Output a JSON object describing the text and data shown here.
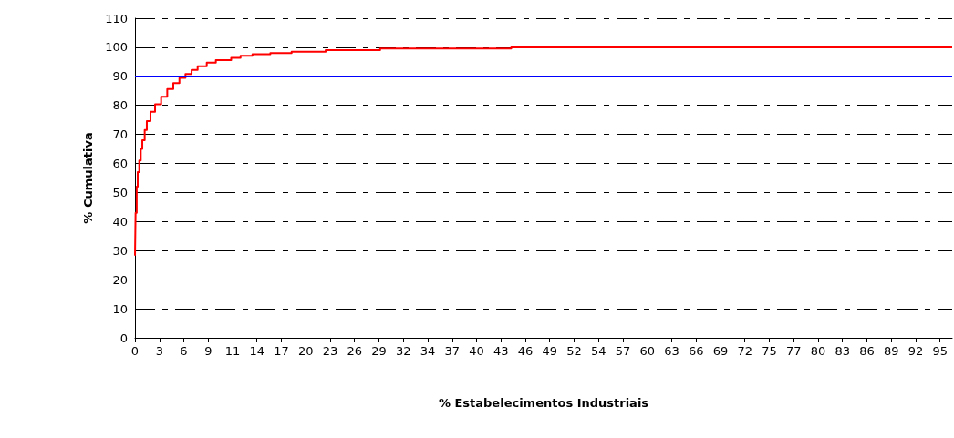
{
  "chart_data": {
    "type": "step",
    "xlabel": "% Estabelecimentos Industriais",
    "ylabel": "% Cumulativa",
    "x": [
      0,
      0.07,
      0.2,
      0.32,
      0.5,
      0.68,
      0.86,
      1.14,
      1.39,
      1.82,
      2.36,
      3.07,
      3.79,
      4.5,
      5.22,
      5.93,
      6.65,
      7.36,
      8.43,
      9.5,
      11.3,
      12.4,
      13.8,
      15.9,
      18.4,
      22.4,
      28.8,
      44.2,
      96
    ],
    "series": [
      {
        "color": "#ff0000",
        "values": [
          28.3,
          43,
          52,
          57,
          61,
          65,
          68,
          71.5,
          74.6,
          77.8,
          80.4,
          83,
          85.6,
          87.7,
          89.5,
          90.8,
          92.2,
          93.5,
          94.7,
          95.6,
          96.4,
          97.1,
          97.6,
          98,
          98.5,
          99,
          99.6,
          100,
          100
        ]
      }
    ],
    "xlim": [
      0,
      96
    ],
    "xticks": [
      0,
      {
        "value": 2.87,
        "label": "3"
      },
      {
        "value": 5.73,
        "label": "6"
      },
      {
        "value": 8.6,
        "label": "9"
      },
      {
        "value": 11.46,
        "label": "11"
      },
      {
        "value": 14.33,
        "label": "14"
      },
      {
        "value": 17.2,
        "label": "17"
      },
      {
        "value": 20.06,
        "label": "20"
      },
      {
        "value": 22.93,
        "label": "23"
      },
      {
        "value": 25.79,
        "label": "26"
      },
      {
        "value": 28.66,
        "label": "29"
      },
      {
        "value": 31.53,
        "label": "32"
      },
      {
        "value": 34.39,
        "label": "34"
      },
      {
        "value": 37.26,
        "label": "37"
      },
      {
        "value": 40.12,
        "label": "40"
      },
      {
        "value": 42.99,
        "label": "43"
      },
      {
        "value": 45.86,
        "label": "46"
      },
      {
        "value": 48.72,
        "label": "49"
      },
      {
        "value": 51.59,
        "label": "52"
      },
      {
        "value": 54.45,
        "label": "54"
      },
      {
        "value": 57.32,
        "label": "57"
      },
      {
        "value": 60.19,
        "label": "60"
      },
      {
        "value": 63.05,
        "label": "63"
      },
      {
        "value": 65.92,
        "label": "66"
      },
      {
        "value": 68.78,
        "label": "69"
      },
      {
        "value": 71.65,
        "label": "72"
      },
      {
        "value": 74.52,
        "label": "75"
      },
      {
        "value": 77.38,
        "label": "77"
      },
      {
        "value": 80.25,
        "label": "80"
      },
      {
        "value": 83.11,
        "label": "83"
      },
      {
        "value": 85.98,
        "label": "86"
      },
      {
        "value": 88.85,
        "label": "89"
      },
      {
        "value": 91.71,
        "label": "92"
      },
      {
        "value": 94.58,
        "label": "95"
      }
    ],
    "ylim": [
      0,
      110
    ],
    "yticks": [
      0,
      10,
      20,
      30,
      40,
      50,
      60,
      70,
      80,
      90,
      100,
      110
    ],
    "grid": "y",
    "marker": "none",
    "ref_lines": [
      {
        "axis": "y",
        "value": 90,
        "color": "#0000ff"
      }
    ]
  }
}
